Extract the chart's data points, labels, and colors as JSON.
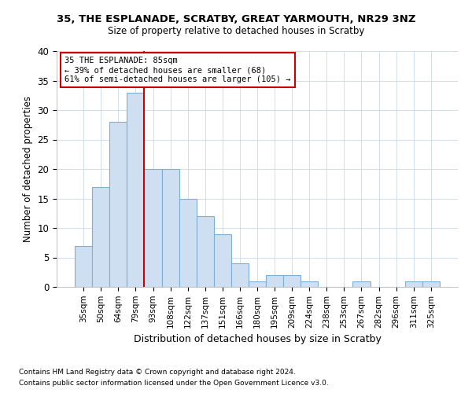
{
  "title1": "35, THE ESPLANADE, SCRATBY, GREAT YARMOUTH, NR29 3NZ",
  "title2": "Size of property relative to detached houses in Scratby",
  "xlabel": "Distribution of detached houses by size in Scratby",
  "ylabel": "Number of detached properties",
  "footnote1": "Contains HM Land Registry data © Crown copyright and database right 2024.",
  "footnote2": "Contains public sector information licensed under the Open Government Licence v3.0.",
  "categories": [
    "35sqm",
    "50sqm",
    "64sqm",
    "79sqm",
    "93sqm",
    "108sqm",
    "122sqm",
    "137sqm",
    "151sqm",
    "166sqm",
    "180sqm",
    "195sqm",
    "209sqm",
    "224sqm",
    "238sqm",
    "253sqm",
    "267sqm",
    "282sqm",
    "296sqm",
    "311sqm",
    "325sqm"
  ],
  "values": [
    7,
    17,
    28,
    33,
    20,
    20,
    15,
    12,
    9,
    4,
    1,
    2,
    2,
    1,
    0,
    0,
    1,
    0,
    0,
    1,
    1
  ],
  "bar_fill_color": "#cfdff2",
  "bar_edge_color": "#7bafd4",
  "red_line_index": 3,
  "property_label": "35 THE ESPLANADE: 85sqm",
  "annotation1": "← 39% of detached houses are smaller (68)",
  "annotation2": "61% of semi-detached houses are larger (105) →",
  "annotation_box_color": "#ffffff",
  "annotation_box_edge": "#cc0000",
  "red_line_color": "#cc0000",
  "ylim": [
    0,
    40
  ],
  "yticks": [
    0,
    5,
    10,
    15,
    20,
    25,
    30,
    35,
    40
  ],
  "background_color": "#ffffff",
  "grid_color": "#c8d8ec"
}
